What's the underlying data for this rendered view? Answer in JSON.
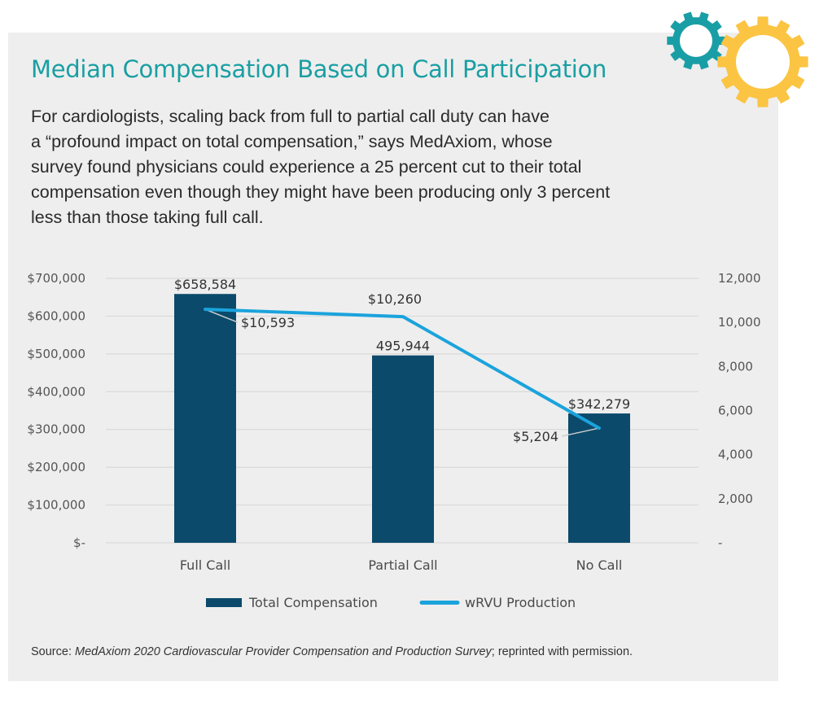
{
  "header": {
    "title": "Median Compensation Based on Call Participation",
    "intro": "For cardiologists, scaling back from full to partial call duty can have a “profound impact on total compensation,” says MedAxiom, whose survey found physicians could experience a 25 percent cut to their total compensation even though they might have been producing only 3 percent less than those taking full call.",
    "intro_lines": [
      "For cardiologists, scaling back from full to partial call duty can have",
      "a “profound impact on total compensation,” says MedAxiom, whose",
      "survey found physicians could experience a 25 percent cut to their total",
      "compensation even though they might have been producing only 3 percent",
      "less than those taking full call."
    ]
  },
  "decoration": {
    "icons": [
      "gear-icon-teal",
      "gear-icon-yellow"
    ],
    "colors": {
      "teal_gear": "#1a9ea6",
      "yellow_gear": "#fbc442"
    }
  },
  "source": {
    "prefix": "Source: ",
    "italic": "MedAxiom 2020 Cardiovascular Provider Compensation and Production Survey",
    "suffix": "; reprinted with permission."
  },
  "colors": {
    "title": "#1a9fa3",
    "bar": "#0b4a6b",
    "line": "#1ba3dc",
    "panel_background": "#eeeeee",
    "gridline": "#d9d9d9",
    "leader_line": "#cccccc"
  },
  "chart_data": {
    "type": "bar",
    "combo": "bar+line",
    "title": "",
    "categories": [
      "Full Call",
      "Partial Call",
      "No Call"
    ],
    "series": [
      {
        "name": "Total Compensation",
        "type": "bar",
        "axis": "left",
        "values": [
          658584,
          495944,
          342279
        ],
        "data_labels": [
          "$658,584",
          "495,944",
          "$342,279"
        ]
      },
      {
        "name": "wRVU Production",
        "type": "line",
        "axis": "right",
        "values": [
          10593,
          10260,
          5204
        ],
        "data_labels": [
          "$10,593",
          "$10,260",
          "$5,204"
        ]
      }
    ],
    "left_axis": {
      "ylim": [
        0,
        700000
      ],
      "ticks": [
        0,
        100000,
        200000,
        300000,
        400000,
        500000,
        600000,
        700000
      ],
      "tick_labels": [
        "$-",
        "$100,000",
        "$200,000",
        "$300,000",
        "$400,000",
        "$500,000",
        "$600,000",
        "$700,000"
      ]
    },
    "right_axis": {
      "ylim": [
        0,
        12000
      ],
      "ticks": [
        0,
        2000,
        4000,
        6000,
        8000,
        10000,
        12000
      ],
      "tick_labels": [
        "-",
        "2,000",
        "4,000",
        "6,000",
        "8,000",
        "10,000",
        "12,000"
      ]
    },
    "xlabel": "",
    "ylabel": "",
    "grid": true,
    "legend": {
      "position": "bottom",
      "entries": [
        {
          "label": "Total Compensation",
          "marker": "bar"
        },
        {
          "label": "wRVU Production",
          "marker": "line"
        }
      ]
    }
  }
}
